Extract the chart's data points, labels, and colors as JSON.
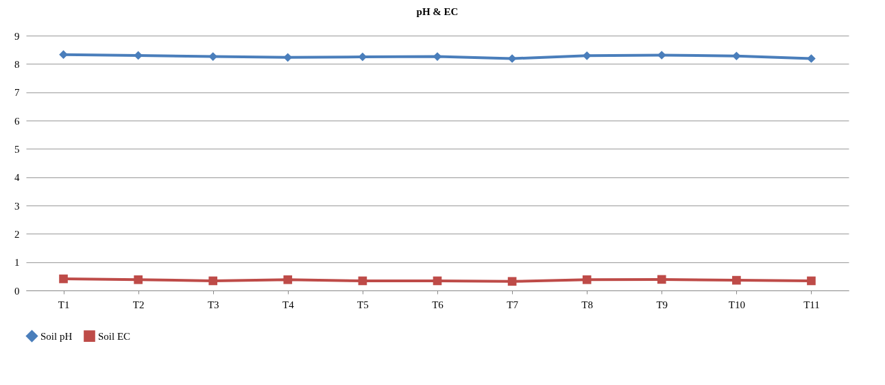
{
  "chart_data": {
    "type": "line",
    "title": "pH & EC",
    "categories": [
      "T1",
      "T2",
      "T3",
      "T4",
      "T5",
      "T6",
      "T7",
      "T8",
      "T9",
      "T10",
      "T11"
    ],
    "series": [
      {
        "name": "Soil pH",
        "color": "#4a7ebb",
        "marker": "diamond",
        "values": [
          8.33,
          8.3,
          8.26,
          8.23,
          8.25,
          8.26,
          8.19,
          8.29,
          8.31,
          8.28,
          8.19
        ]
      },
      {
        "name": "Soil EC",
        "color": "#be4b48",
        "marker": "square",
        "values": [
          0.41,
          0.38,
          0.34,
          0.38,
          0.34,
          0.34,
          0.32,
          0.38,
          0.39,
          0.36,
          0.34
        ]
      }
    ],
    "ylim": [
      0,
      9
    ],
    "yticks": [
      0,
      1,
      2,
      3,
      4,
      5,
      6,
      7,
      8,
      9
    ],
    "grid": "y",
    "legend": "bottom",
    "line_style": "solid"
  }
}
